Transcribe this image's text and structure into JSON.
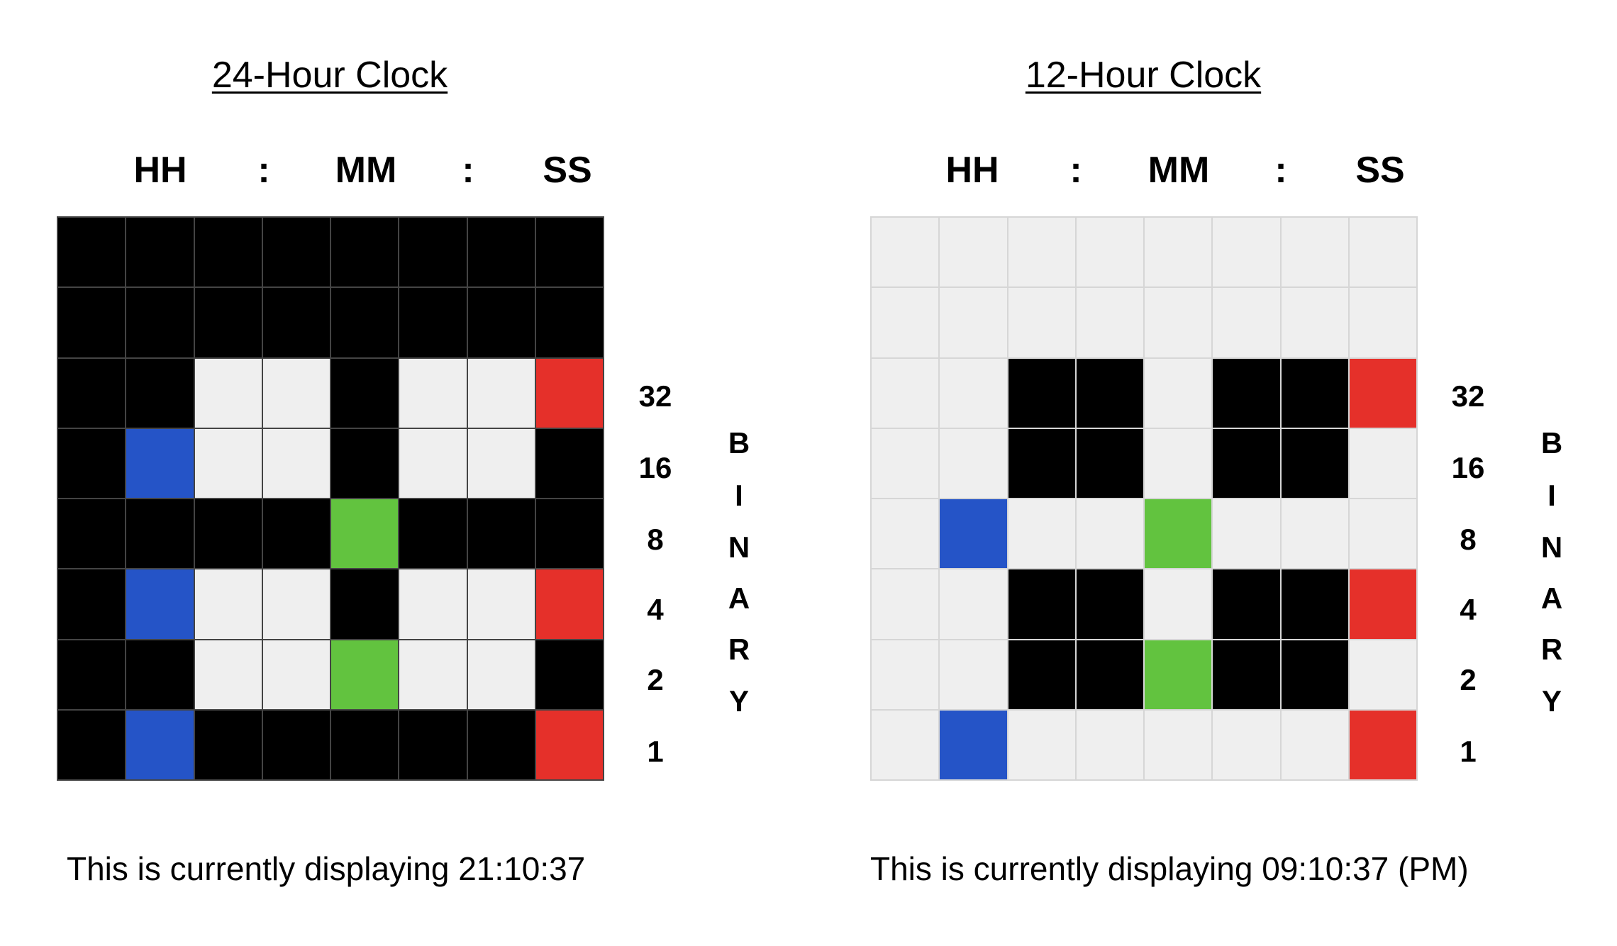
{
  "colors": {
    "off_dark": "#000000",
    "off_light": "#efefef",
    "hours_on": "#2554c7",
    "minutes_on": "#62c33f",
    "seconds_on": "#e5302a"
  },
  "bit_labels": [
    "32",
    "16",
    "8",
    "4",
    "2",
    "1"
  ],
  "binary_letters": [
    "B",
    "I",
    "N",
    "A",
    "R",
    "Y"
  ],
  "clocks": [
    {
      "title": "24-Hour Clock",
      "segments": [
        "HH",
        ":",
        "MM",
        ":",
        "SS"
      ],
      "theme": "dark",
      "grid": [
        "00000000",
        "00000000",
        "00110113",
        "01110110",
        "00002000",
        "01110113",
        "00112110",
        "01000003"
      ],
      "caption": "This is currently displaying 21:10:37"
    },
    {
      "title": "12-Hour Clock",
      "segments": [
        "HH",
        ":",
        "MM",
        ":",
        "SS"
      ],
      "theme": "light",
      "grid": [
        "00000000",
        "00000000",
        "00110113",
        "00110110",
        "01002000",
        "00110113",
        "00112110",
        "01000003"
      ],
      "caption": "This is currently displaying 09:10:37 (PM)"
    }
  ]
}
